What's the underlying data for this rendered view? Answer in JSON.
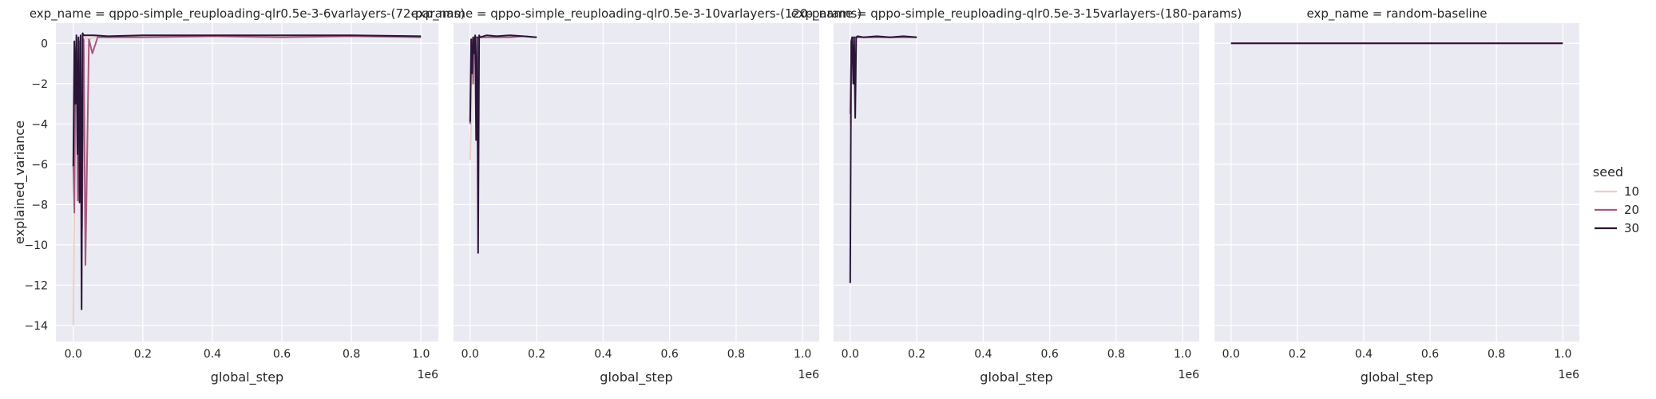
{
  "figure": {
    "ylabel": "explained_variance",
    "legend": {
      "title": "seed",
      "placement": "right",
      "entries": [
        {
          "label": "10",
          "color": "#eecdc4"
        },
        {
          "label": "20",
          "color": "#a8597e"
        },
        {
          "label": "30",
          "color": "#2a1538"
        }
      ]
    }
  },
  "chart_data": [
    {
      "type": "line",
      "title": "exp_name = qppo-simple_reuploading-qlr0.5e-3-6varlayers-(72-params)",
      "xlabel": "global_step",
      "ylabel": "explained_variance",
      "x_offset_label": "1e6",
      "x_ticks": [
        "0.0",
        "0.2",
        "0.4",
        "0.6",
        "0.8",
        "1.0"
      ],
      "y_ticks": [
        "0",
        "−2",
        "−4",
        "−6",
        "−8",
        "−10",
        "−12",
        "−14"
      ],
      "xlim": [
        -50000,
        1050000
      ],
      "ylim": [
        -14.8,
        1.0
      ],
      "grid": true,
      "series": [
        {
          "name": "10",
          "color": "#eecdc4",
          "x": [
            0,
            3000,
            6000,
            10000,
            15000,
            22000,
            30000,
            45000,
            70000,
            100000,
            200000,
            400000,
            600000,
            800000,
            1000000
          ],
          "y": [
            -14.0,
            -8.0,
            -2.0,
            0.1,
            -1.5,
            0.2,
            0.3,
            0.2,
            0.35,
            0.3,
            0.3,
            0.35,
            0.3,
            0.35,
            0.3
          ]
        },
        {
          "name": "20",
          "color": "#a8597e",
          "x": [
            0,
            3000,
            6000,
            9000,
            13000,
            18000,
            25000,
            30000,
            35000,
            45000,
            55000,
            70000,
            100000,
            200000,
            400000,
            600000,
            800000,
            1000000
          ],
          "y": [
            -6.0,
            -8.4,
            -1.0,
            0.2,
            -7.8,
            0.1,
            -9.2,
            0.2,
            -11.0,
            0.2,
            -0.5,
            0.3,
            0.3,
            0.3,
            0.35,
            0.3,
            0.35,
            0.3
          ]
        },
        {
          "name": "30",
          "color": "#2a1538",
          "x": [
            0,
            3000,
            6000,
            9000,
            12000,
            15000,
            18000,
            21000,
            24000,
            27000,
            30000,
            40000,
            60000,
            100000,
            200000,
            400000,
            600000,
            800000,
            1000000
          ],
          "y": [
            -6.1,
            0.1,
            -3.0,
            0.4,
            -5.5,
            0.3,
            -7.9,
            0.4,
            -13.2,
            0.5,
            0.4,
            0.4,
            0.4,
            0.35,
            0.4,
            0.4,
            0.4,
            0.4,
            0.35
          ]
        }
      ]
    },
    {
      "type": "line",
      "title": "exp_name = qppo-simple_reuploading-qlr0.5e-3-10varlayers-(120-params)",
      "xlabel": "global_step",
      "ylabel": "",
      "x_offset_label": "1e6",
      "x_ticks": [
        "0.0",
        "0.2",
        "0.4",
        "0.6",
        "0.8",
        "1.0"
      ],
      "y_ticks": [],
      "xlim": [
        -50000,
        1050000
      ],
      "ylim": [
        -14.8,
        1.0
      ],
      "grid": true,
      "series": [
        {
          "name": "10",
          "color": "#eecdc4",
          "x": [
            0,
            3000,
            6000,
            10000,
            20000,
            40000,
            80000,
            120000,
            160000,
            200000
          ],
          "y": [
            -5.8,
            -4.0,
            0.2,
            0.3,
            0.3,
            0.3,
            0.3,
            0.3,
            0.35,
            0.3
          ]
        },
        {
          "name": "20",
          "color": "#a8597e",
          "x": [
            0,
            3000,
            6000,
            9000,
            12000,
            20000,
            40000,
            80000,
            120000,
            160000,
            200000
          ],
          "y": [
            -4.0,
            -1.0,
            0.2,
            -2.0,
            0.3,
            0.3,
            0.3,
            0.3,
            0.3,
            0.35,
            0.3
          ]
        },
        {
          "name": "30",
          "color": "#2a1538",
          "x": [
            0,
            3000,
            6000,
            9000,
            12000,
            15000,
            18000,
            21000,
            24000,
            27000,
            30000,
            50000,
            80000,
            120000,
            160000,
            200000
          ],
          "y": [
            -3.9,
            0.2,
            -1.5,
            0.3,
            -0.5,
            0.4,
            -4.8,
            0.3,
            -10.4,
            0.4,
            0.3,
            0.4,
            0.35,
            0.4,
            0.35,
            0.3
          ]
        }
      ]
    },
    {
      "type": "line",
      "title": "exp_name = qppo-simple_reuploading-qlr0.5e-3-15varlayers-(180-params)",
      "xlabel": "global_step",
      "ylabel": "",
      "x_offset_label": "1e6",
      "x_ticks": [
        "0.0",
        "0.2",
        "0.4",
        "0.6",
        "0.8",
        "1.0"
      ],
      "y_ticks": [],
      "xlim": [
        -50000,
        1050000
      ],
      "ylim": [
        -14.8,
        1.0
      ],
      "grid": true,
      "series": [
        {
          "name": "10",
          "color": "#eecdc4",
          "x": [
            0,
            4000,
            8000,
            20000,
            50000,
            100000,
            150000,
            200000
          ],
          "y": [
            -4.0,
            0.2,
            0.3,
            0.3,
            0.3,
            0.3,
            0.3,
            0.3
          ]
        },
        {
          "name": "20",
          "color": "#a8597e",
          "x": [
            0,
            4000,
            8000,
            20000,
            50000,
            100000,
            150000,
            200000
          ],
          "y": [
            -3.5,
            0.1,
            0.3,
            0.3,
            0.3,
            0.3,
            0.3,
            0.3
          ]
        },
        {
          "name": "30",
          "color": "#2a1538",
          "x": [
            0,
            3000,
            6000,
            9000,
            12000,
            15000,
            18000,
            22000,
            40000,
            80000,
            120000,
            160000,
            200000
          ],
          "y": [
            -11.9,
            0.1,
            0.3,
            -2.0,
            0.3,
            -3.7,
            0.3,
            0.35,
            0.3,
            0.35,
            0.3,
            0.35,
            0.3
          ]
        }
      ]
    },
    {
      "type": "line",
      "title": "exp_name = random-baseline",
      "xlabel": "global_step",
      "ylabel": "",
      "x_offset_label": "1e6",
      "x_ticks": [
        "0.0",
        "0.2",
        "0.4",
        "0.6",
        "0.8",
        "1.0"
      ],
      "y_ticks": [],
      "xlim": [
        -50000,
        1050000
      ],
      "ylim": [
        -14.8,
        1.0
      ],
      "grid": true,
      "series": [
        {
          "name": "10",
          "color": "#eecdc4",
          "x": [
            0,
            1000000
          ],
          "y": [
            0.0,
            0.0
          ]
        },
        {
          "name": "20",
          "color": "#a8597e",
          "x": [
            0,
            1000000
          ],
          "y": [
            0.0,
            0.0
          ]
        },
        {
          "name": "30",
          "color": "#2a1538",
          "x": [
            0,
            1000000
          ],
          "y": [
            0.0,
            0.0
          ]
        }
      ]
    }
  ]
}
